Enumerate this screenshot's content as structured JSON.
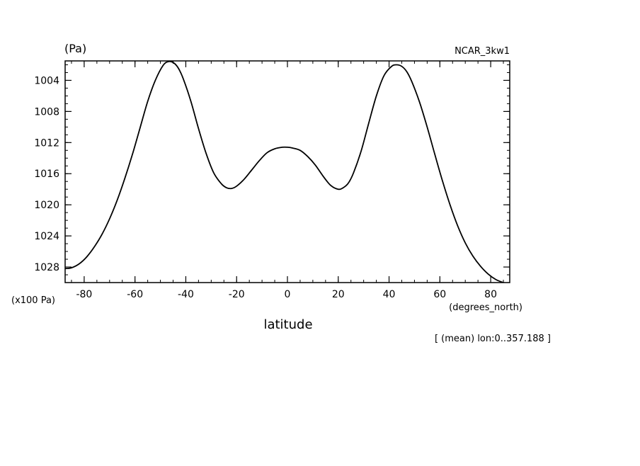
{
  "chart_data": {
    "type": "line",
    "unit_label": "(Pa)",
    "run_label": "NCAR_3kw1",
    "y_scale_label": "(x100 Pa)",
    "x_unit_label": "(degrees_north)",
    "xlabel": "latitude",
    "footnote": "[ (mean) lon:0..357.188 ]",
    "xlim": [
      -87.5,
      87.5
    ],
    "ylim": [
      1030,
      1001.5
    ],
    "y_inverted": true,
    "grid": false,
    "x_ticks": [
      -80,
      -60,
      -40,
      -20,
      0,
      20,
      40,
      60,
      80
    ],
    "x_tick_labels": [
      "-80",
      "-60",
      "-40",
      "-20",
      "0",
      "20",
      "40",
      "60",
      "80"
    ],
    "y_ticks": [
      1004,
      1008,
      1012,
      1016,
      1020,
      1024,
      1028
    ],
    "y_tick_labels": [
      "1004",
      "1008",
      "1012",
      "1016",
      "1020",
      "1024",
      "1028"
    ],
    "x_minor_step": 5,
    "y_minor_step": 1,
    "series": [
      {
        "color": "#000000",
        "x": [
          -87.5,
          -85,
          -82,
          -79,
          -76,
          -73,
          -70,
          -67,
          -64,
          -61,
          -58,
          -55,
          -52,
          -49,
          -47,
          -45,
          -43,
          -41,
          -38,
          -35,
          -32,
          -29,
          -26,
          -24,
          -22,
          -20,
          -17,
          -14,
          -11,
          -8,
          -5,
          -2,
          0,
          2,
          5,
          8,
          11,
          14,
          17,
          20,
          22,
          24,
          26,
          29,
          32,
          35,
          38,
          41,
          43,
          45,
          47,
          49,
          52,
          55,
          58,
          61,
          64,
          67,
          70,
          73,
          76,
          79,
          82,
          85,
          87.5
        ],
        "y": [
          1028.2,
          1028.1,
          1027.6,
          1026.7,
          1025.4,
          1023.8,
          1021.8,
          1019.4,
          1016.6,
          1013.5,
          1010.1,
          1006.7,
          1004.0,
          1002.1,
          1001.6,
          1001.7,
          1002.4,
          1003.8,
          1006.7,
          1010.2,
          1013.4,
          1015.9,
          1017.3,
          1017.8,
          1017.9,
          1017.6,
          1016.7,
          1015.5,
          1014.3,
          1013.3,
          1012.8,
          1012.6,
          1012.6,
          1012.7,
          1013.0,
          1013.8,
          1014.9,
          1016.3,
          1017.5,
          1018.0,
          1017.8,
          1017.2,
          1015.9,
          1013.1,
          1009.5,
          1006.0,
          1003.4,
          1002.2,
          1002.0,
          1002.2,
          1002.9,
          1004.2,
          1006.8,
          1010.0,
          1013.5,
          1016.9,
          1020.0,
          1022.7,
          1024.9,
          1026.6,
          1027.9,
          1028.9,
          1029.6,
          1030.0,
          1030.2
        ]
      }
    ]
  }
}
